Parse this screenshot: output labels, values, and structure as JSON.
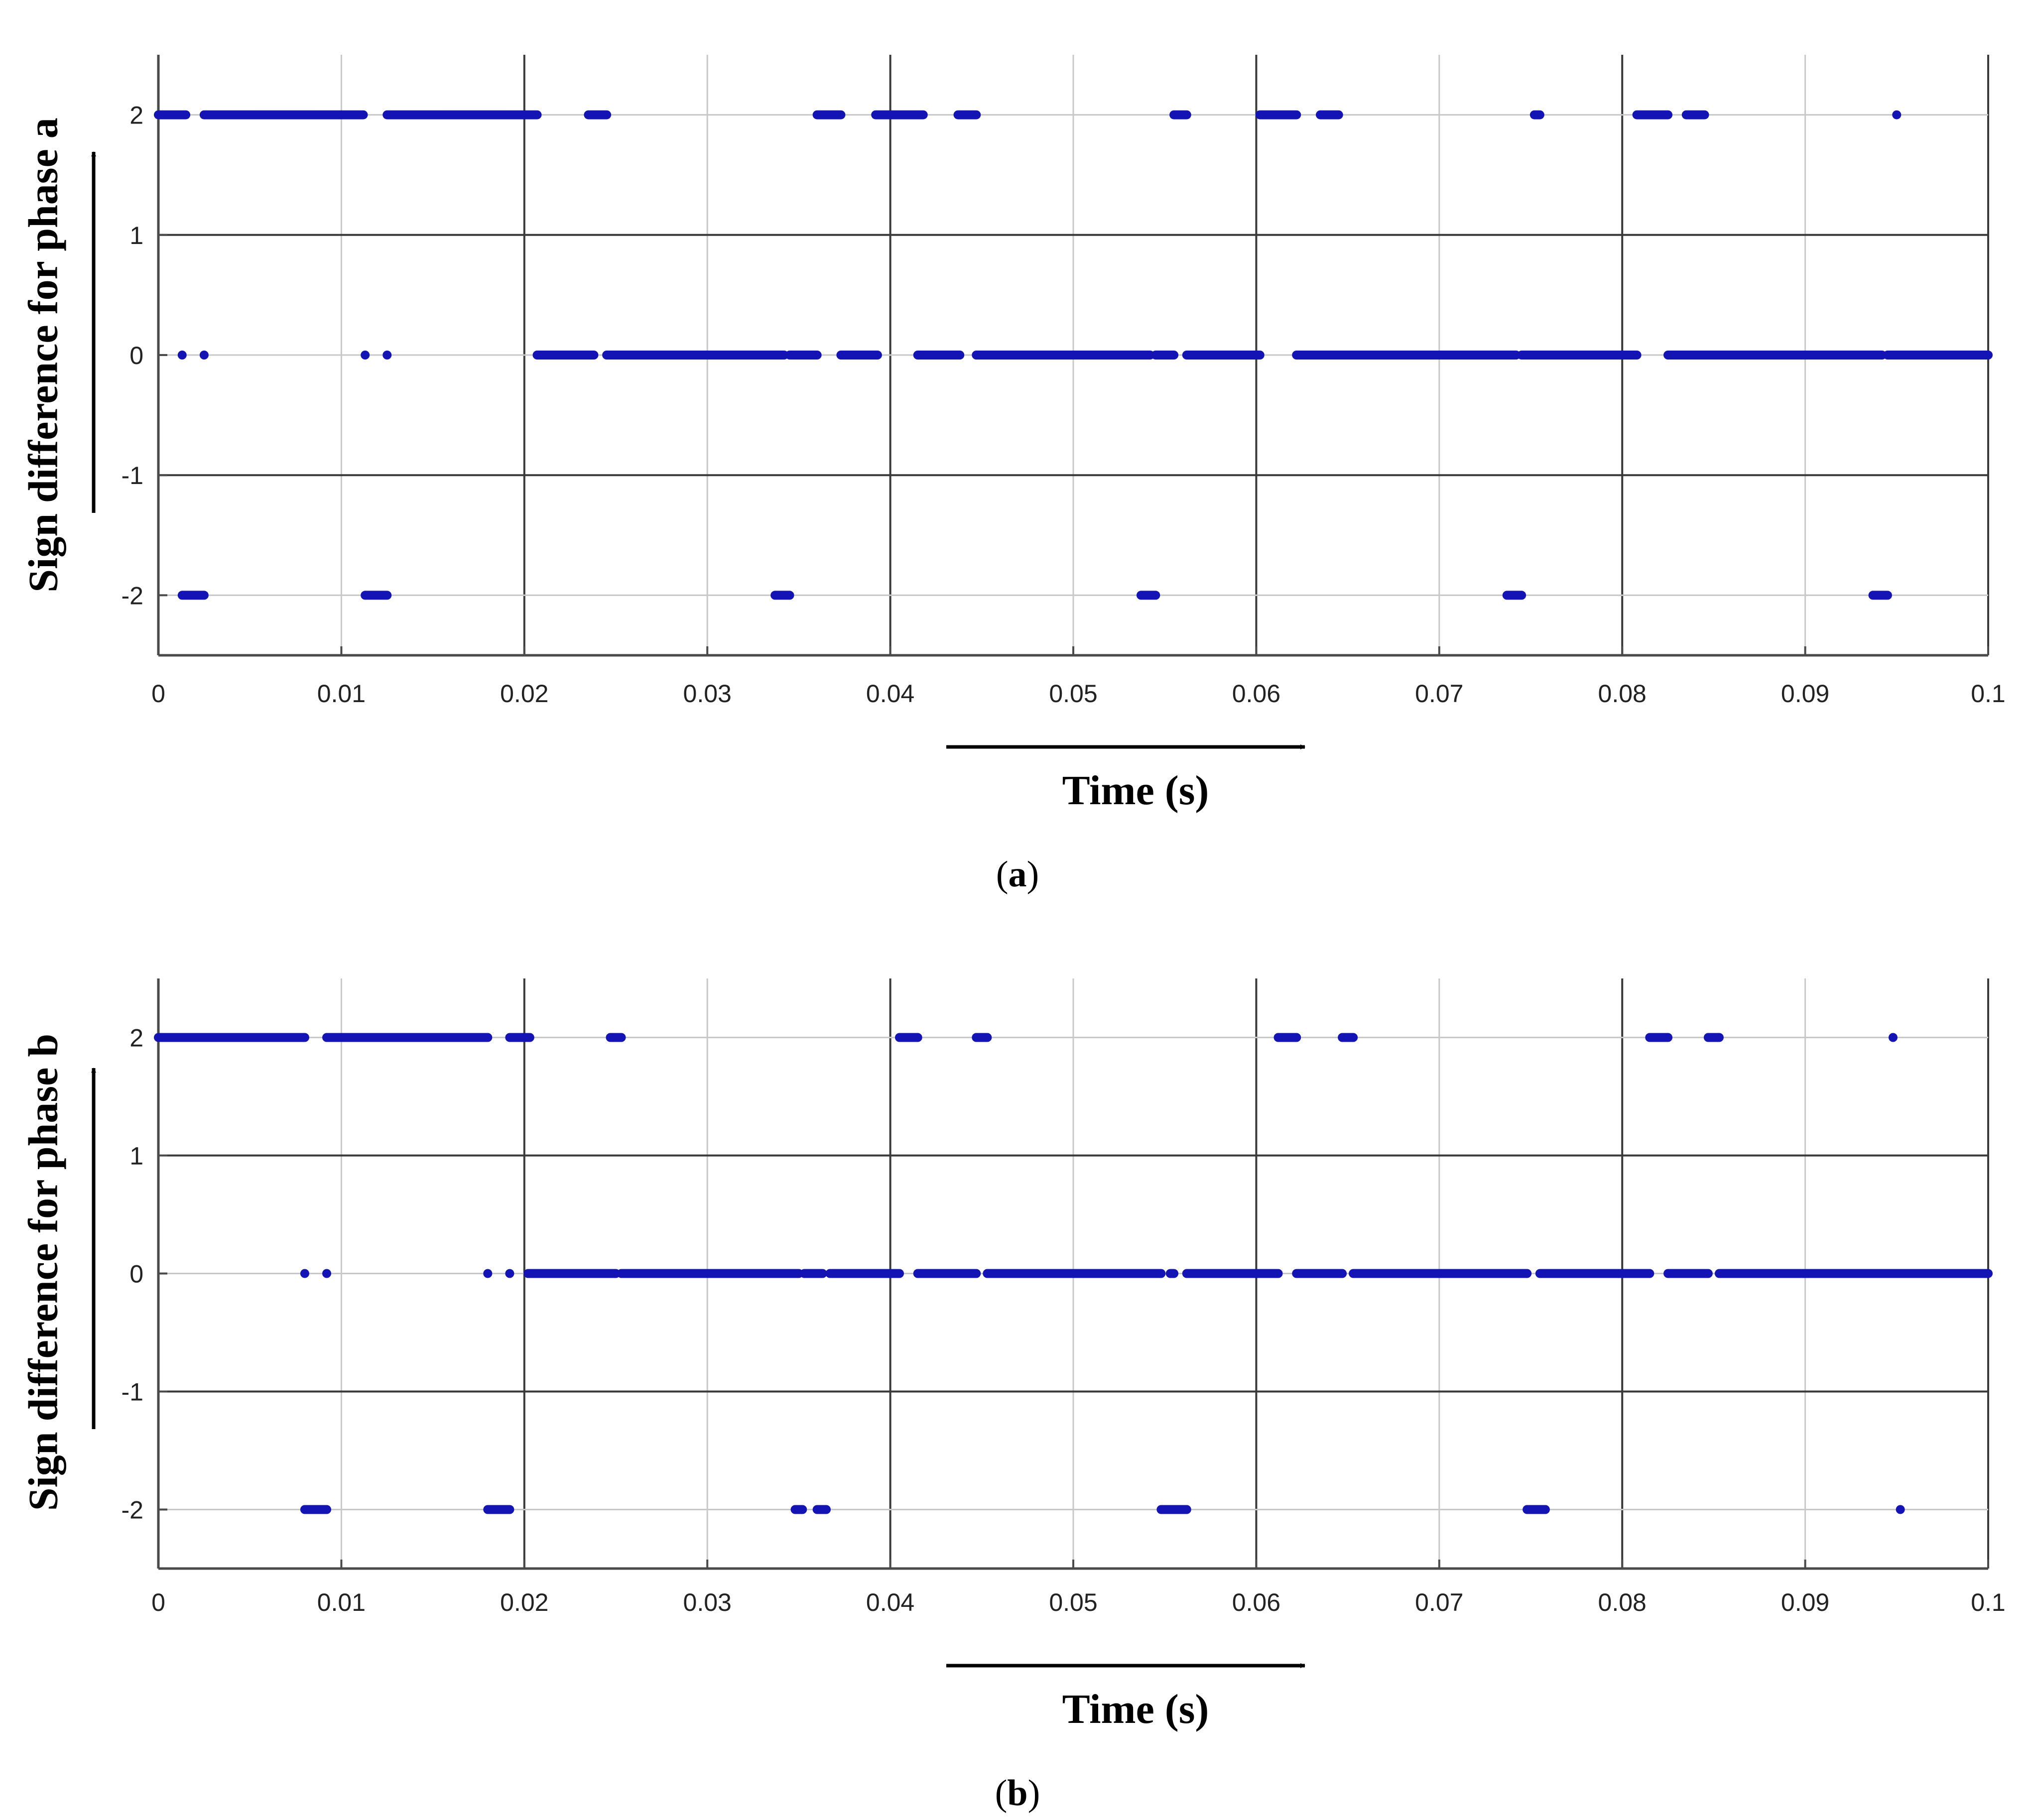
{
  "colors": {
    "marker": "#1414b4",
    "grid_major": "#3a3a3a",
    "grid_minor": "#c8c8c8",
    "axis": "#4a4a4a",
    "arrow": "#000000"
  },
  "chart_data": [
    {
      "type": "scatter",
      "panel_label": "a",
      "title": "",
      "xlabel": "Time (s)",
      "ylabel": "Sign difference for phase a",
      "xlim": [
        0,
        0.1
      ],
      "ylim": [
        -2.5,
        2.5
      ],
      "xticks": [
        0,
        0.01,
        0.02,
        0.03,
        0.04,
        0.05,
        0.06,
        0.07,
        0.08,
        0.09,
        0.1
      ],
      "xtick_labels": [
        "0",
        "0.01",
        "0.02",
        "0.03",
        "0.04",
        "0.05",
        "0.06",
        "0.07",
        "0.08",
        "0.09",
        "0.1"
      ],
      "yticks": [
        2,
        1,
        0,
        -1,
        -2
      ],
      "ytick_labels": [
        "2",
        "1",
        "0",
        "-1",
        "-2"
      ],
      "grid": true,
      "series": [
        {
          "y": 2,
          "segments": [
            [
              0.0,
              0.0015
            ],
            [
              0.0025,
              0.0112
            ],
            [
              0.0125,
              0.0207
            ],
            [
              0.0235,
              0.0245
            ],
            [
              0.036,
              0.0373
            ],
            [
              0.0392,
              0.0418
            ],
            [
              0.0437,
              0.0447
            ],
            [
              0.0555,
              0.0562
            ],
            [
              0.0602,
              0.0622
            ],
            [
              0.0635,
              0.0645
            ],
            [
              0.0752,
              0.0755
            ],
            [
              0.0808,
              0.0825
            ],
            [
              0.0835,
              0.0845
            ],
            [
              0.095,
              0.095
            ]
          ]
        },
        {
          "y": 0,
          "segments": [
            [
              0.0013,
              0.0013
            ],
            [
              0.0025,
              0.0025
            ],
            [
              0.0113,
              0.0113
            ],
            [
              0.0125,
              0.0125
            ],
            [
              0.0207,
              0.0238
            ],
            [
              0.0245,
              0.0342
            ],
            [
              0.0345,
              0.036
            ],
            [
              0.0373,
              0.0393
            ],
            [
              0.0415,
              0.0438
            ],
            [
              0.0447,
              0.0542
            ],
            [
              0.0545,
              0.0555
            ],
            [
              0.0562,
              0.0602
            ],
            [
              0.0622,
              0.0645
            ],
            [
              0.0645,
              0.0742
            ],
            [
              0.0745,
              0.0808
            ],
            [
              0.0825,
              0.0845
            ],
            [
              0.0845,
              0.0942
            ],
            [
              0.0945,
              0.1
            ]
          ]
        },
        {
          "y": -2,
          "segments": [
            [
              0.0013,
              0.0025
            ],
            [
              0.0113,
              0.0125
            ],
            [
              0.0337,
              0.0345
            ],
            [
              0.0537,
              0.0545
            ],
            [
              0.0737,
              0.0745
            ],
            [
              0.0937,
              0.0945
            ]
          ]
        }
      ]
    },
    {
      "type": "scatter",
      "panel_label": "b",
      "title": "",
      "xlabel": "Time (s)",
      "ylabel": "Sign difference for phase b",
      "xlim": [
        0,
        0.1
      ],
      "ylim": [
        -2.5,
        2.5
      ],
      "xticks": [
        0,
        0.01,
        0.02,
        0.03,
        0.04,
        0.05,
        0.06,
        0.07,
        0.08,
        0.09,
        0.1
      ],
      "xtick_labels": [
        "0",
        "0.01",
        "0.02",
        "0.03",
        "0.04",
        "0.05",
        "0.06",
        "0.07",
        "0.08",
        "0.09",
        "0.1"
      ],
      "yticks": [
        2,
        1,
        0,
        -1,
        -2
      ],
      "ytick_labels": [
        "2",
        "1",
        "0",
        "-1",
        "-2"
      ],
      "grid": true,
      "series": [
        {
          "y": 2,
          "segments": [
            [
              0.0,
              0.008
            ],
            [
              0.0092,
              0.018
            ],
            [
              0.0192,
              0.0203
            ],
            [
              0.0247,
              0.0253
            ],
            [
              0.0405,
              0.0415
            ],
            [
              0.0447,
              0.0453
            ],
            [
              0.0612,
              0.0622
            ],
            [
              0.0647,
              0.0653
            ],
            [
              0.0815,
              0.0825
            ],
            [
              0.0847,
              0.0853
            ],
            [
              0.0948,
              0.0948
            ]
          ]
        },
        {
          "y": 0,
          "segments": [
            [
              0.008,
              0.008
            ],
            [
              0.0092,
              0.0092
            ],
            [
              0.018,
              0.018
            ],
            [
              0.0192,
              0.0192
            ],
            [
              0.0202,
              0.025
            ],
            [
              0.0253,
              0.035
            ],
            [
              0.0353,
              0.0363
            ],
            [
              0.0367,
              0.0405
            ],
            [
              0.0415,
              0.0447
            ],
            [
              0.0453,
              0.0548
            ],
            [
              0.0553,
              0.0555
            ],
            [
              0.0562,
              0.0612
            ],
            [
              0.0622,
              0.0647
            ],
            [
              0.0653,
              0.0748
            ],
            [
              0.0755,
              0.0815
            ],
            [
              0.0825,
              0.0847
            ],
            [
              0.0853,
              0.1
            ]
          ]
        },
        {
          "y": -2,
          "segments": [
            [
              0.008,
              0.0092
            ],
            [
              0.018,
              0.0192
            ],
            [
              0.0348,
              0.0352
            ],
            [
              0.036,
              0.0365
            ],
            [
              0.0548,
              0.0562
            ],
            [
              0.0748,
              0.0758
            ],
            [
              0.0952,
              0.0952
            ]
          ]
        }
      ]
    }
  ]
}
